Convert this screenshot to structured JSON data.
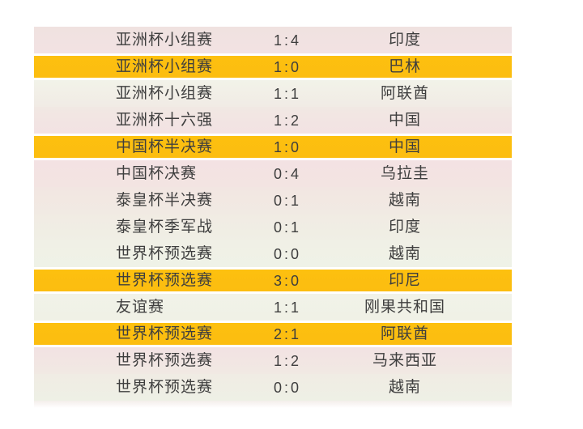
{
  "colors": {
    "page_background": "#ffffff",
    "highlight_row": "#fdc00f",
    "row_pink": "#f2e2e3",
    "row_green": "#f1f2e7",
    "separator": "#ffffff",
    "text": "#3e3e3e"
  },
  "chart_data": {
    "type": "table",
    "columns": [
      "competition",
      "score",
      "opponent"
    ],
    "highlight_meaning": "rows-with-orange-background",
    "rows": [
      {
        "competition": "亚洲杯小组赛",
        "score": "1:4",
        "opponent": "印度",
        "highlight": false,
        "bg_from": "#f0e2e0",
        "bg_to": "#f2e2e3"
      },
      {
        "competition": "亚洲杯小组赛",
        "score": "1:0",
        "opponent": "巴林",
        "highlight": true,
        "bg_from": "#fdc00f",
        "bg_to": "#fcbd10"
      },
      {
        "competition": "亚洲杯小组赛",
        "score": "1:1",
        "opponent": "阿联酋",
        "highlight": false,
        "bg_from": "#f2f3e9",
        "bg_to": "#f1ebe5"
      },
      {
        "competition": "亚洲杯十六强",
        "score": "1:2",
        "opponent": "中国",
        "highlight": false,
        "bg_from": "#f1e8e3",
        "bg_to": "#f3e2e3"
      },
      {
        "competition": "中国杯半决赛",
        "score": "1:0",
        "opponent": "中国",
        "highlight": true,
        "bg_from": "#fdc00f",
        "bg_to": "#fcbd10"
      },
      {
        "competition": "中国杯决赛",
        "score": "0:4",
        "opponent": "乌拉圭",
        "highlight": false,
        "bg_from": "#f3e2e3",
        "bg_to": "#f3e4e2"
      },
      {
        "competition": "泰皇杯半决赛",
        "score": "0:1",
        "opponent": "越南",
        "highlight": false,
        "bg_from": "#f2e6e2",
        "bg_to": "#f1eae3"
      },
      {
        "competition": "泰皇杯季军战",
        "score": "0:1",
        "opponent": "印度",
        "highlight": false,
        "bg_from": "#f1ebe3",
        "bg_to": "#f0efe5"
      },
      {
        "competition": "世界杯预选赛",
        "score": "0:0",
        "opponent": "越南",
        "highlight": false,
        "bg_from": "#f0f0e6",
        "bg_to": "#eff2e7"
      },
      {
        "competition": "世界杯预选赛",
        "score": "3:0",
        "opponent": "印尼",
        "highlight": true,
        "bg_from": "#fdc00f",
        "bg_to": "#fcbd10"
      },
      {
        "competition": "友谊赛",
        "score": "1:1",
        "opponent": "刚果共和国",
        "highlight": false,
        "bg_from": "#f1f2e8",
        "bg_to": "#f0f1e6"
      },
      {
        "competition": "世界杯预选赛",
        "score": "2:1",
        "opponent": "阿联酋",
        "highlight": true,
        "bg_from": "#fdc00f",
        "bg_to": "#fcbd10"
      },
      {
        "competition": "世界杯预选赛",
        "score": "1:2",
        "opponent": "马来西亚",
        "highlight": false,
        "bg_from": "#f2e2e3",
        "bg_to": "#f1e9e3"
      },
      {
        "competition": "世界杯预选赛",
        "score": "0:0",
        "opponent": "越南",
        "highlight": false,
        "bg_from": "#f0ece4",
        "bg_to": "#eef0e5"
      }
    ]
  }
}
